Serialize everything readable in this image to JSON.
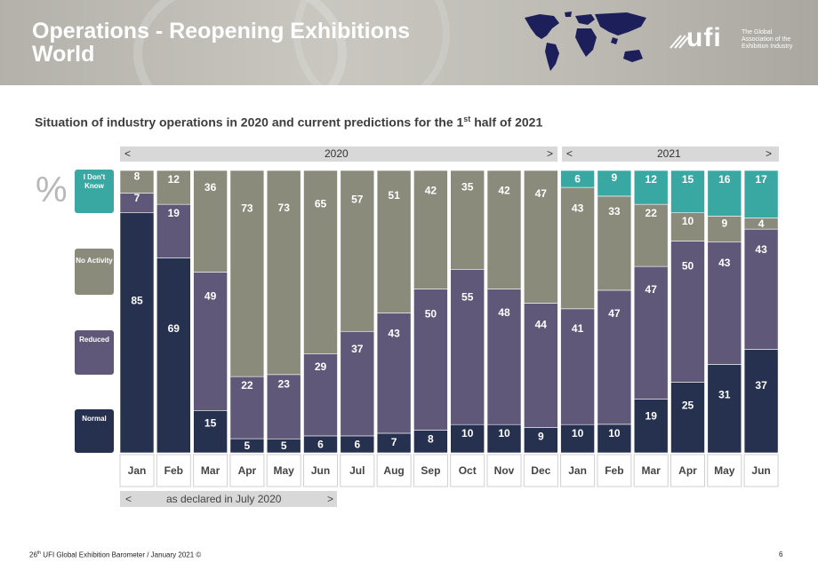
{
  "header": {
    "title_line1": "Operations - Reopening Exhibitions",
    "title_line2": "World",
    "logo_text": "ufi",
    "logo_tagline": [
      "The Global",
      "Association of the",
      "Exhibition Industry"
    ]
  },
  "subtitle": {
    "pre": "Situation of industry operations in 2020 and current predictions for the 1",
    "sup": "st",
    "post": " half of 2021"
  },
  "year_bars": [
    {
      "label": "2020",
      "left": "<",
      "right": ">"
    },
    {
      "label": "2021",
      "left": "<",
      "right": ">"
    }
  ],
  "percent_symbol": "%",
  "legend": [
    {
      "label": "I Don't Know",
      "color": "#3aa8a2"
    },
    {
      "label": "No Activity",
      "color": "#8b8b7c"
    },
    {
      "label": "Reduced",
      "color": "#5f5878"
    },
    {
      "label": "Normal",
      "color": "#26304f"
    }
  ],
  "chart_data": {
    "type": "bar",
    "stacked": true,
    "unit": "%",
    "categories": [
      "Jan",
      "Feb",
      "Mar",
      "Apr",
      "May",
      "Jun",
      "Jul",
      "Aug",
      "Sep",
      "Oct",
      "Nov",
      "Dec",
      "Jan",
      "Feb",
      "Mar",
      "Apr",
      "May",
      "Jun"
    ],
    "groups": [
      {
        "label": "2020",
        "months": [
          "Jan",
          "Feb",
          "Mar",
          "Apr",
          "May",
          "Jun",
          "Jul",
          "Aug",
          "Sep",
          "Oct",
          "Nov",
          "Dec"
        ]
      },
      {
        "label": "2021",
        "months": [
          "Jan",
          "Feb",
          "Mar",
          "Apr",
          "May",
          "Jun"
        ]
      }
    ],
    "series": [
      {
        "name": "Normal",
        "color": "#26304f",
        "values": [
          85,
          69,
          15,
          5,
          5,
          6,
          6,
          7,
          8,
          10,
          10,
          9,
          10,
          10,
          19,
          25,
          31,
          37
        ]
      },
      {
        "name": "Reduced",
        "color": "#5f5878",
        "values": [
          7,
          19,
          49,
          22,
          23,
          29,
          37,
          43,
          50,
          55,
          48,
          44,
          41,
          47,
          47,
          50,
          43,
          43
        ]
      },
      {
        "name": "No Activity",
        "color": "#8b8b7c",
        "values": [
          8,
          12,
          36,
          73,
          73,
          65,
          57,
          51,
          42,
          35,
          42,
          47,
          43,
          33,
          22,
          10,
          9,
          4
        ]
      },
      {
        "name": "I Don't Know",
        "color": "#3aa8a2",
        "values": [
          null,
          null,
          null,
          null,
          null,
          null,
          null,
          null,
          null,
          null,
          null,
          null,
          6,
          9,
          12,
          15,
          16,
          17
        ]
      }
    ],
    "ylim": [
      0,
      100
    ],
    "footnote": "as declared in July 2020"
  },
  "declared": {
    "left": "<",
    "label": "as declared in July 2020",
    "right": ">"
  },
  "footer": {
    "pre": "26",
    "sup": "th",
    "post": " UFI Global Exhibition Barometer / January 2021 ©"
  },
  "page_number": "6"
}
